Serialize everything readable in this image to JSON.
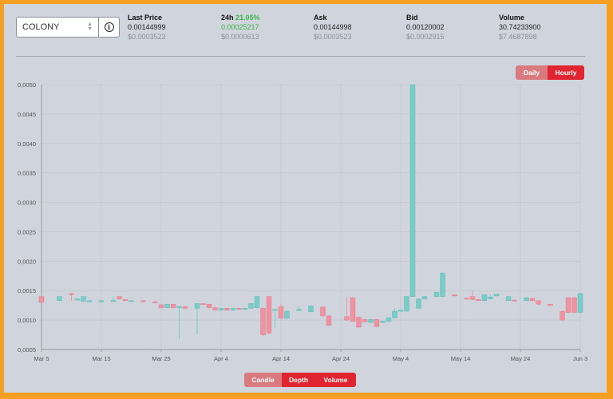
{
  "market_selector": {
    "value": "COLONY",
    "info_icon": "info-icon"
  },
  "stats": {
    "last_price": {
      "label": "Last Price",
      "value": "0.00144999",
      "usd": "$0.0003523"
    },
    "change_24h": {
      "label": "24h",
      "percent": "21.05%",
      "value": "0.00025217",
      "usd": "$0.0000613"
    },
    "ask": {
      "label": "Ask",
      "value": "0.00144998",
      "usd": "$0.0003523"
    },
    "bid": {
      "label": "Bid",
      "value": "0.00120002",
      "usd": "$0.0002915"
    },
    "volume": {
      "label": "Volume",
      "value": "30.74233900",
      "usd": "$7.4687898"
    }
  },
  "interval_toggle": {
    "daily": "Daily",
    "hourly": "Hourly",
    "selected": "Hourly"
  },
  "view_toggle": {
    "candle": "Candle",
    "depth": "Depth",
    "volume": "Volume",
    "selected": "Depth"
  },
  "colors": {
    "up": "#79cdc8",
    "down": "#ef93a1",
    "accent": "#e02530",
    "green": "#3cb54a"
  },
  "chart_data": {
    "type": "candlestick",
    "y_ticks": [
      "0,0005",
      "0,0010",
      "0,0015",
      "0,0020",
      "0,0025",
      "0,0030",
      "0,0035",
      "0,0040",
      "0,0045",
      "0,0050"
    ],
    "ylim": [
      0.0005,
      0.005
    ],
    "x_ticks": [
      "Mar 5",
      "Mar 15",
      "Mar 25",
      "Apr 4",
      "Apr 14",
      "Apr 24",
      "May 4",
      "May 14",
      "May 24",
      "Jun 3"
    ],
    "xlim": [
      "2024-03-05",
      "2024-06-03"
    ],
    "grid": true,
    "candles": [
      {
        "d": "03-05",
        "o": 0.0014,
        "c": 0.0013,
        "h": 0.0014,
        "l": 0.0013
      },
      {
        "d": "03-08",
        "o": 0.00133,
        "c": 0.0014,
        "h": 0.0014,
        "l": 0.00133
      },
      {
        "d": "03-10",
        "o": 0.00145,
        "c": 0.00143,
        "h": 0.00146,
        "l": 0.00133
      },
      {
        "d": "03-11",
        "o": 0.00134,
        "c": 0.00136,
        "h": 0.00137,
        "l": 0.00133
      },
      {
        "d": "03-12",
        "o": 0.00132,
        "c": 0.0014,
        "h": 0.0014,
        "l": 0.00131
      },
      {
        "d": "03-13",
        "o": 0.00131,
        "c": 0.00133,
        "h": 0.00135,
        "l": 0.0013
      },
      {
        "d": "03-15",
        "o": 0.00131,
        "c": 0.00133,
        "h": 0.00134,
        "l": 0.0013
      },
      {
        "d": "03-17",
        "o": 0.00132,
        "c": 0.00133,
        "h": 0.0014,
        "l": 0.00131
      },
      {
        "d": "03-18",
        "o": 0.0014,
        "c": 0.00136,
        "h": 0.0014,
        "l": 0.00135
      },
      {
        "d": "03-19",
        "o": 0.00135,
        "c": 0.00133,
        "h": 0.00135,
        "l": 0.00132
      },
      {
        "d": "03-20",
        "o": 0.00133,
        "c": 0.00133,
        "h": 0.00134,
        "l": 0.00132
      },
      {
        "d": "03-22",
        "o": 0.00133,
        "c": 0.00131,
        "h": 0.00133,
        "l": 0.0013
      },
      {
        "d": "03-24",
        "o": 0.00131,
        "c": 0.0013,
        "h": 0.00134,
        "l": 0.00129
      },
      {
        "d": "03-25",
        "o": 0.00126,
        "c": 0.00121,
        "h": 0.00127,
        "l": 0.0012
      },
      {
        "d": "03-26",
        "o": 0.00121,
        "c": 0.00127,
        "h": 0.00128,
        "l": 0.0012
      },
      {
        "d": "03-27",
        "o": 0.00127,
        "c": 0.00121,
        "h": 0.00128,
        "l": 0.0012
      },
      {
        "d": "03-28",
        "o": 0.00121,
        "c": 0.00123,
        "h": 0.00124,
        "l": 0.00068
      },
      {
        "d": "03-29",
        "o": 0.00123,
        "c": 0.0012,
        "h": 0.00124,
        "l": 0.00119
      },
      {
        "d": "03-31",
        "o": 0.0012,
        "c": 0.00128,
        "h": 0.00129,
        "l": 0.00076
      },
      {
        "d": "04-01",
        "o": 0.00128,
        "c": 0.00127,
        "h": 0.00129,
        "l": 0.00126
      },
      {
        "d": "04-02",
        "o": 0.00127,
        "c": 0.00121,
        "h": 0.00128,
        "l": 0.0012
      },
      {
        "d": "04-03",
        "o": 0.00121,
        "c": 0.00117,
        "h": 0.00122,
        "l": 0.00116
      },
      {
        "d": "04-04",
        "o": 0.00117,
        "c": 0.0012,
        "h": 0.00121,
        "l": 0.00116
      },
      {
        "d": "04-05",
        "o": 0.0012,
        "c": 0.00117,
        "h": 0.00121,
        "l": 0.00116
      },
      {
        "d": "04-06",
        "o": 0.00117,
        "c": 0.0012,
        "h": 0.00121,
        "l": 0.00116
      },
      {
        "d": "04-07",
        "o": 0.0012,
        "c": 0.00118,
        "h": 0.00121,
        "l": 0.00117
      },
      {
        "d": "04-08",
        "o": 0.00118,
        "c": 0.0012,
        "h": 0.00121,
        "l": 0.00117
      },
      {
        "d": "04-09",
        "o": 0.0012,
        "c": 0.00128,
        "h": 0.00129,
        "l": 0.00119
      },
      {
        "d": "04-10",
        "o": 0.00121,
        "c": 0.0014,
        "h": 0.00141,
        "l": 0.0012
      },
      {
        "d": "04-11",
        "o": 0.0012,
        "c": 0.00075,
        "h": 0.00121,
        "l": 0.00073
      },
      {
        "d": "04-12",
        "o": 0.0014,
        "c": 0.00078,
        "h": 0.00141,
        "l": 0.00076
      },
      {
        "d": "04-13",
        "o": 0.00118,
        "c": 0.00118,
        "h": 0.00119,
        "l": 0.00087
      },
      {
        "d": "04-14",
        "o": 0.00123,
        "c": 0.00103,
        "h": 0.00128,
        "l": 0.00102
      },
      {
        "d": "04-15",
        "o": 0.00103,
        "c": 0.00115,
        "h": 0.00116,
        "l": 0.00102
      },
      {
        "d": "04-17",
        "o": 0.00116,
        "c": 0.00118,
        "h": 0.00124,
        "l": 0.00115
      },
      {
        "d": "04-19",
        "o": 0.00114,
        "c": 0.00124,
        "h": 0.00125,
        "l": 0.00113
      },
      {
        "d": "04-21",
        "o": 0.00122,
        "c": 0.00107,
        "h": 0.00123,
        "l": 0.00106
      },
      {
        "d": "04-22",
        "o": 0.00107,
        "c": 0.00091,
        "h": 0.00108,
        "l": 0.0009
      },
      {
        "d": "04-25",
        "o": 0.00106,
        "c": 0.001,
        "h": 0.00138,
        "l": 0.00099
      },
      {
        "d": "04-26",
        "o": 0.00138,
        "c": 0.00098,
        "h": 0.00139,
        "l": 0.00097
      },
      {
        "d": "04-27",
        "o": 0.00105,
        "c": 0.00088,
        "h": 0.00106,
        "l": 0.00087
      },
      {
        "d": "04-28",
        "o": 0.00101,
        "c": 0.00097,
        "h": 0.00102,
        "l": 0.00096
      },
      {
        "d": "04-29",
        "o": 0.00096,
        "c": 0.00101,
        "h": 0.00102,
        "l": 0.00095
      },
      {
        "d": "04-30",
        "o": 0.00101,
        "c": 0.00089,
        "h": 0.00102,
        "l": 0.00088
      },
      {
        "d": "05-01",
        "o": 0.00096,
        "c": 0.00098,
        "h": 0.00099,
        "l": 0.00095
      },
      {
        "d": "05-02",
        "o": 0.00098,
        "c": 0.00104,
        "h": 0.00105,
        "l": 0.00097
      },
      {
        "d": "05-03",
        "o": 0.00104,
        "c": 0.00115,
        "h": 0.0012,
        "l": 0.00103
      },
      {
        "d": "05-04",
        "o": 0.00115,
        "c": 0.00117,
        "h": 0.00118,
        "l": 0.00114
      },
      {
        "d": "05-05",
        "o": 0.00115,
        "c": 0.0014,
        "h": 0.00141,
        "l": 0.00114
      },
      {
        "d": "05-06",
        "o": 0.0014,
        "c": 0.005,
        "h": 0.005,
        "l": 0.00139
      },
      {
        "d": "05-07",
        "o": 0.0012,
        "c": 0.00136,
        "h": 0.00137,
        "l": 0.00119
      },
      {
        "d": "05-08",
        "o": 0.00136,
        "c": 0.0014,
        "h": 0.00141,
        "l": 0.00135
      },
      {
        "d": "05-10",
        "o": 0.0014,
        "c": 0.00147,
        "h": 0.00148,
        "l": 0.00139
      },
      {
        "d": "05-11",
        "o": 0.0014,
        "c": 0.0018,
        "h": 0.00181,
        "l": 0.00139
      },
      {
        "d": "05-13",
        "o": 0.00143,
        "c": 0.00141,
        "h": 0.00143,
        "l": 0.0014
      },
      {
        "d": "05-15",
        "o": 0.00137,
        "c": 0.00136,
        "h": 0.00138,
        "l": 0.00135
      },
      {
        "d": "05-16",
        "o": 0.0014,
        "c": 0.00135,
        "h": 0.0015,
        "l": 0.00134
      },
      {
        "d": "05-17",
        "o": 0.00135,
        "c": 0.00133,
        "h": 0.00136,
        "l": 0.00132
      },
      {
        "d": "05-18",
        "o": 0.00133,
        "c": 0.00143,
        "h": 0.00144,
        "l": 0.00132
      },
      {
        "d": "05-19",
        "o": 0.00136,
        "c": 0.00139,
        "h": 0.00143,
        "l": 0.00135
      },
      {
        "d": "05-20",
        "o": 0.00141,
        "c": 0.00144,
        "h": 0.00145,
        "l": 0.0014
      },
      {
        "d": "05-22",
        "o": 0.00133,
        "c": 0.0014,
        "h": 0.00141,
        "l": 0.00132
      },
      {
        "d": "05-23",
        "o": 0.00134,
        "c": 0.00133,
        "h": 0.00135,
        "l": 0.00132
      },
      {
        "d": "05-25",
        "o": 0.00133,
        "c": 0.00138,
        "h": 0.00139,
        "l": 0.00132
      },
      {
        "d": "05-26",
        "o": 0.00137,
        "c": 0.00133,
        "h": 0.00138,
        "l": 0.00132
      },
      {
        "d": "05-27",
        "o": 0.00133,
        "c": 0.00127,
        "h": 0.00134,
        "l": 0.00126
      },
      {
        "d": "05-29",
        "o": 0.00127,
        "c": 0.00125,
        "h": 0.00128,
        "l": 0.00124
      },
      {
        "d": "05-31",
        "o": 0.00115,
        "c": 0.001,
        "h": 0.00116,
        "l": 0.00099
      },
      {
        "d": "06-01",
        "o": 0.00138,
        "c": 0.00113,
        "h": 0.00139,
        "l": 0.00112
      },
      {
        "d": "06-02",
        "o": 0.00138,
        "c": 0.00113,
        "h": 0.00139,
        "l": 0.00112
      },
      {
        "d": "06-03",
        "o": 0.00113,
        "c": 0.00145,
        "h": 0.00146,
        "l": 0.00112
      }
    ]
  }
}
